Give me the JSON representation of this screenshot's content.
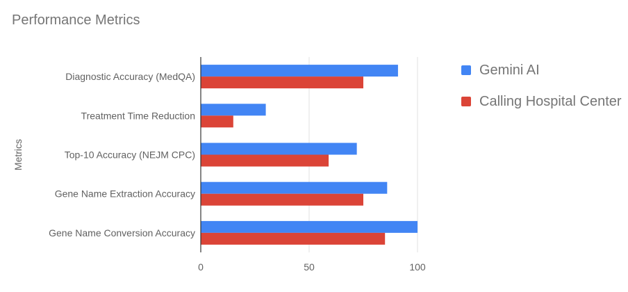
{
  "title": "Performance Metrics",
  "chart_data": {
    "type": "bar",
    "orientation": "horizontal",
    "title": "Performance Metrics",
    "ylabel": "Metrics",
    "xlabel": "",
    "xlim": [
      0,
      100
    ],
    "x_ticks": [
      0,
      50,
      100
    ],
    "grid": true,
    "legend_position": "right",
    "categories": [
      "Diagnostic Accuracy (MedQA)",
      "Treatment Time Reduction",
      "Top-10 Accuracy (NEJM CPC)",
      "Gene Name Extraction Accuracy",
      "Gene Name Conversion Accuracy"
    ],
    "series": [
      {
        "name": "Gemini AI",
        "color": "#4285f4",
        "values": [
          91,
          30,
          72,
          86,
          100
        ]
      },
      {
        "name": "Calling Hospital Center",
        "color": "#db4437",
        "values": [
          75,
          15,
          59,
          75,
          85
        ]
      }
    ]
  }
}
